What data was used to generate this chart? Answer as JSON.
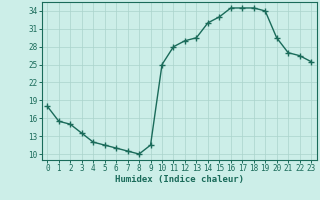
{
  "x": [
    0,
    1,
    2,
    3,
    4,
    5,
    6,
    7,
    8,
    9,
    10,
    11,
    12,
    13,
    14,
    15,
    16,
    17,
    18,
    19,
    20,
    21,
    22,
    23
  ],
  "y": [
    18,
    15.5,
    15,
    13.5,
    12,
    11.5,
    11,
    10.5,
    10,
    11.5,
    25,
    28,
    29,
    29.5,
    32,
    33,
    34.5,
    34.5,
    34.5,
    34,
    29.5,
    27,
    26.5,
    25.5
  ],
  "line_color": "#1a6b5a",
  "marker": "+",
  "marker_size": 4,
  "background_color": "#cceee8",
  "grid_color": "#aad4cc",
  "xlabel": "Humidex (Indice chaleur)",
  "ylim": [
    9,
    35.5
  ],
  "xlim": [
    -0.5,
    23.5
  ],
  "yticks": [
    10,
    13,
    16,
    19,
    22,
    25,
    28,
    31,
    34
  ],
  "xtick_labels": [
    "0",
    "1",
    "2",
    "3",
    "4",
    "5",
    "6",
    "7",
    "8",
    "9",
    "10",
    "11",
    "12",
    "13",
    "14",
    "15",
    "16",
    "17",
    "18",
    "19",
    "20",
    "21",
    "22",
    "23"
  ],
  "xlabel_fontsize": 6.5,
  "tick_fontsize": 5.5,
  "line_width": 1.0
}
